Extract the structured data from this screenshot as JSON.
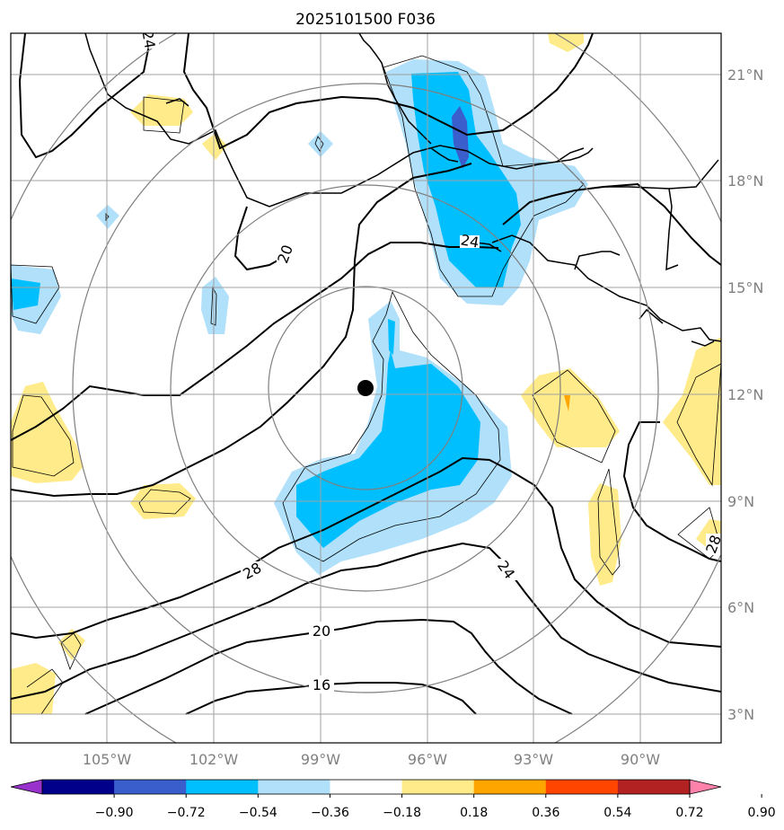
{
  "title": "2025101500 F036",
  "lon_labels": [
    "105°W",
    "102°W",
    "99°W",
    "96°W",
    "93°W",
    "90°W"
  ],
  "lat_labels": [
    "21°N",
    "18°N",
    "15°N",
    "12°N",
    "9°N",
    "6°N",
    "3°N"
  ],
  "contour_labels": [
    "24",
    "20",
    "28",
    "24",
    "20",
    "16",
    "28",
    "24"
  ],
  "colorbar": {
    "ticks": [
      "−0.90",
      "−0.72",
      "−0.54",
      "−0.36",
      "−0.18",
      "0.18",
      "0.36",
      "0.54",
      "0.72",
      "0.90"
    ],
    "colors": [
      "#9932cc",
      "#00008b",
      "#3a5fcd",
      "#00bfff",
      "#b0e0fa",
      "#ffffff",
      "#ffeb8a",
      "#ffa500",
      "#ff4500",
      "#b22222",
      "#ff82ab"
    ]
  },
  "center_marker": {
    "lon": -97.8,
    "lat": 12.2
  }
}
